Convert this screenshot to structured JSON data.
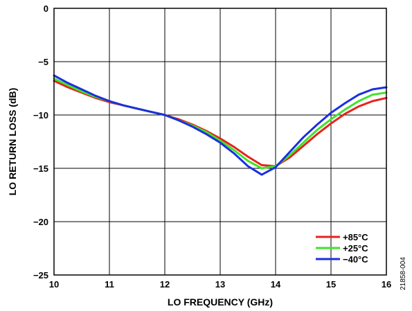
{
  "chart_data": {
    "type": "line",
    "xlabel": "LO FREQUENCY (GHz)",
    "ylabel": "LO RETURN LOSS (dB)",
    "xlim": [
      10,
      16
    ],
    "ylim": [
      -25,
      0
    ],
    "x_ticks": [
      "10",
      "11",
      "12",
      "13",
      "14",
      "15",
      "16"
    ],
    "y_ticks": [
      "0",
      "−5",
      "−10",
      "−15",
      "−20",
      "−25"
    ],
    "grid": true,
    "legend_position": "bottom-right",
    "figure_id": "21858-004",
    "series": [
      {
        "name": "+85°C",
        "color": "#e8221c",
        "x": [
          10,
          10.25,
          10.5,
          10.75,
          11,
          11.25,
          11.5,
          11.75,
          12,
          12.25,
          12.5,
          12.75,
          13,
          13.25,
          13.5,
          13.75,
          14,
          14.25,
          14.5,
          14.75,
          15,
          15.25,
          15.5,
          15.75,
          16
        ],
        "y": [
          -6.8,
          -7.4,
          -7.9,
          -8.4,
          -8.8,
          -9.1,
          -9.4,
          -9.7,
          -10.0,
          -10.4,
          -10.9,
          -11.5,
          -12.2,
          -13.0,
          -13.9,
          -14.7,
          -14.8,
          -14.0,
          -12.9,
          -11.8,
          -10.8,
          -9.9,
          -9.2,
          -8.7,
          -8.4
        ]
      },
      {
        "name": "+25°C",
        "color": "#3ee32a",
        "x": [
          10,
          10.25,
          10.5,
          10.75,
          11,
          11.25,
          11.5,
          11.75,
          12,
          12.25,
          12.5,
          12.75,
          13,
          13.25,
          13.5,
          13.75,
          14,
          14.25,
          14.5,
          14.75,
          15,
          15.25,
          15.5,
          15.75,
          16
        ],
        "y": [
          -6.6,
          -7.2,
          -7.8,
          -8.3,
          -8.7,
          -9.1,
          -9.4,
          -9.7,
          -10.0,
          -10.5,
          -11.0,
          -11.6,
          -12.4,
          -13.3,
          -14.3,
          -15.0,
          -14.8,
          -13.8,
          -12.6,
          -11.4,
          -10.4,
          -9.5,
          -8.7,
          -8.1,
          -7.9
        ]
      },
      {
        "name": "−40°C",
        "color": "#1b2fe0",
        "x": [
          10,
          10.25,
          10.5,
          10.75,
          11,
          11.25,
          11.5,
          11.75,
          12,
          12.25,
          12.5,
          12.75,
          13,
          13.25,
          13.5,
          13.75,
          14,
          14.25,
          14.5,
          14.75,
          15,
          15.25,
          15.5,
          15.75,
          16
        ],
        "y": [
          -6.3,
          -7.0,
          -7.6,
          -8.2,
          -8.7,
          -9.1,
          -9.4,
          -9.7,
          -10.0,
          -10.5,
          -11.1,
          -11.8,
          -12.6,
          -13.6,
          -14.8,
          -15.6,
          -14.9,
          -13.5,
          -12.1,
          -10.9,
          -9.8,
          -8.9,
          -8.1,
          -7.6,
          -7.4
        ]
      }
    ]
  }
}
